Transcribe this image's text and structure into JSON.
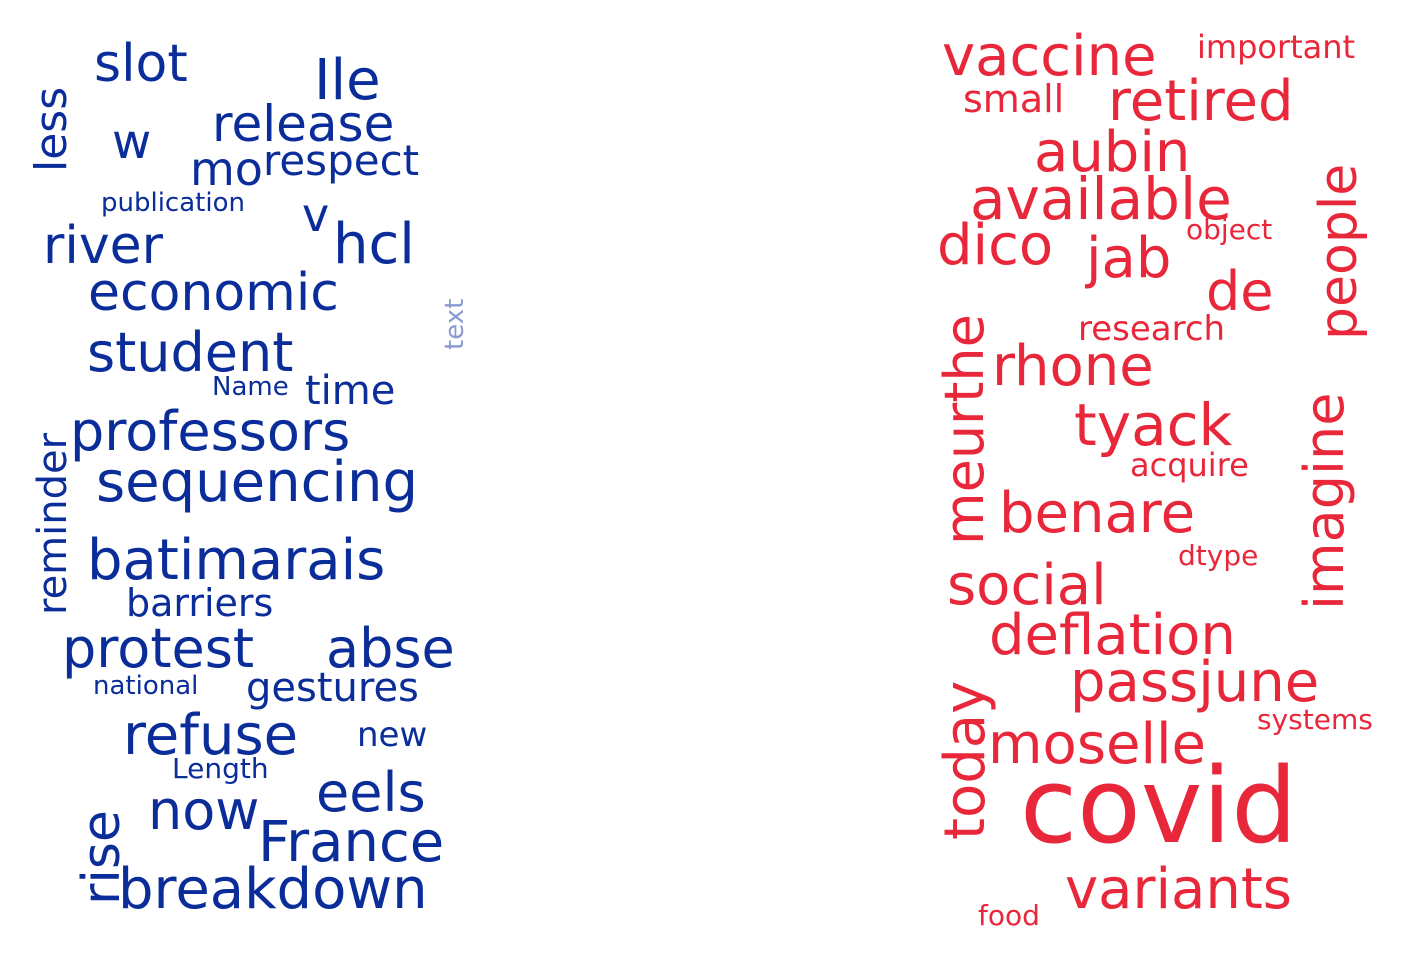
{
  "left_cloud": {
    "color": "#0a2d9a",
    "faded_color": "#8a9ad0",
    "words": {
      "slot": "slot",
      "ile": "Ile",
      "less": "less",
      "w": "w",
      "release": "release",
      "mo": "mo",
      "respect": "respect",
      "publication": "publication",
      "v": "v",
      "river": "river",
      "hcl": "hcl",
      "economic": "economic",
      "text": "text",
      "student": "student",
      "name": "Name",
      "time": "time",
      "reminder": "reminder",
      "professors": "professors",
      "sequencing": "sequencing",
      "batimarais": "batimarais",
      "barriers": "barriers",
      "protest": "protest",
      "abse": "abse",
      "national": "national",
      "gestures": "gestures",
      "refuse": "refuse",
      "new": "new",
      "length": "Length",
      "rise": "rise",
      "eels": "eels",
      "now": "now",
      "france": "France",
      "breakdown": "breakdown"
    }
  },
  "right_cloud": {
    "color": "#e8283a",
    "words": {
      "vaccine": "vaccine",
      "important": "important",
      "small": "small",
      "retired": "retired",
      "aubin": "aubin",
      "people": "people",
      "available": "available",
      "object": "object",
      "dico": "dico",
      "jab": "jab",
      "meurthe": "meurthe",
      "de": "de",
      "research": "research",
      "rhone": "rhone",
      "imagine": "imagine",
      "tyack": "tyack",
      "acquire": "acquire",
      "benare": "benare",
      "dtype": "dtype",
      "social": "social",
      "deflation": "deflation",
      "today": "today",
      "passjune": "passjune",
      "systems": "systems",
      "moselle": "moselle",
      "covid": "covid",
      "variants": "variants",
      "food": "food"
    }
  }
}
